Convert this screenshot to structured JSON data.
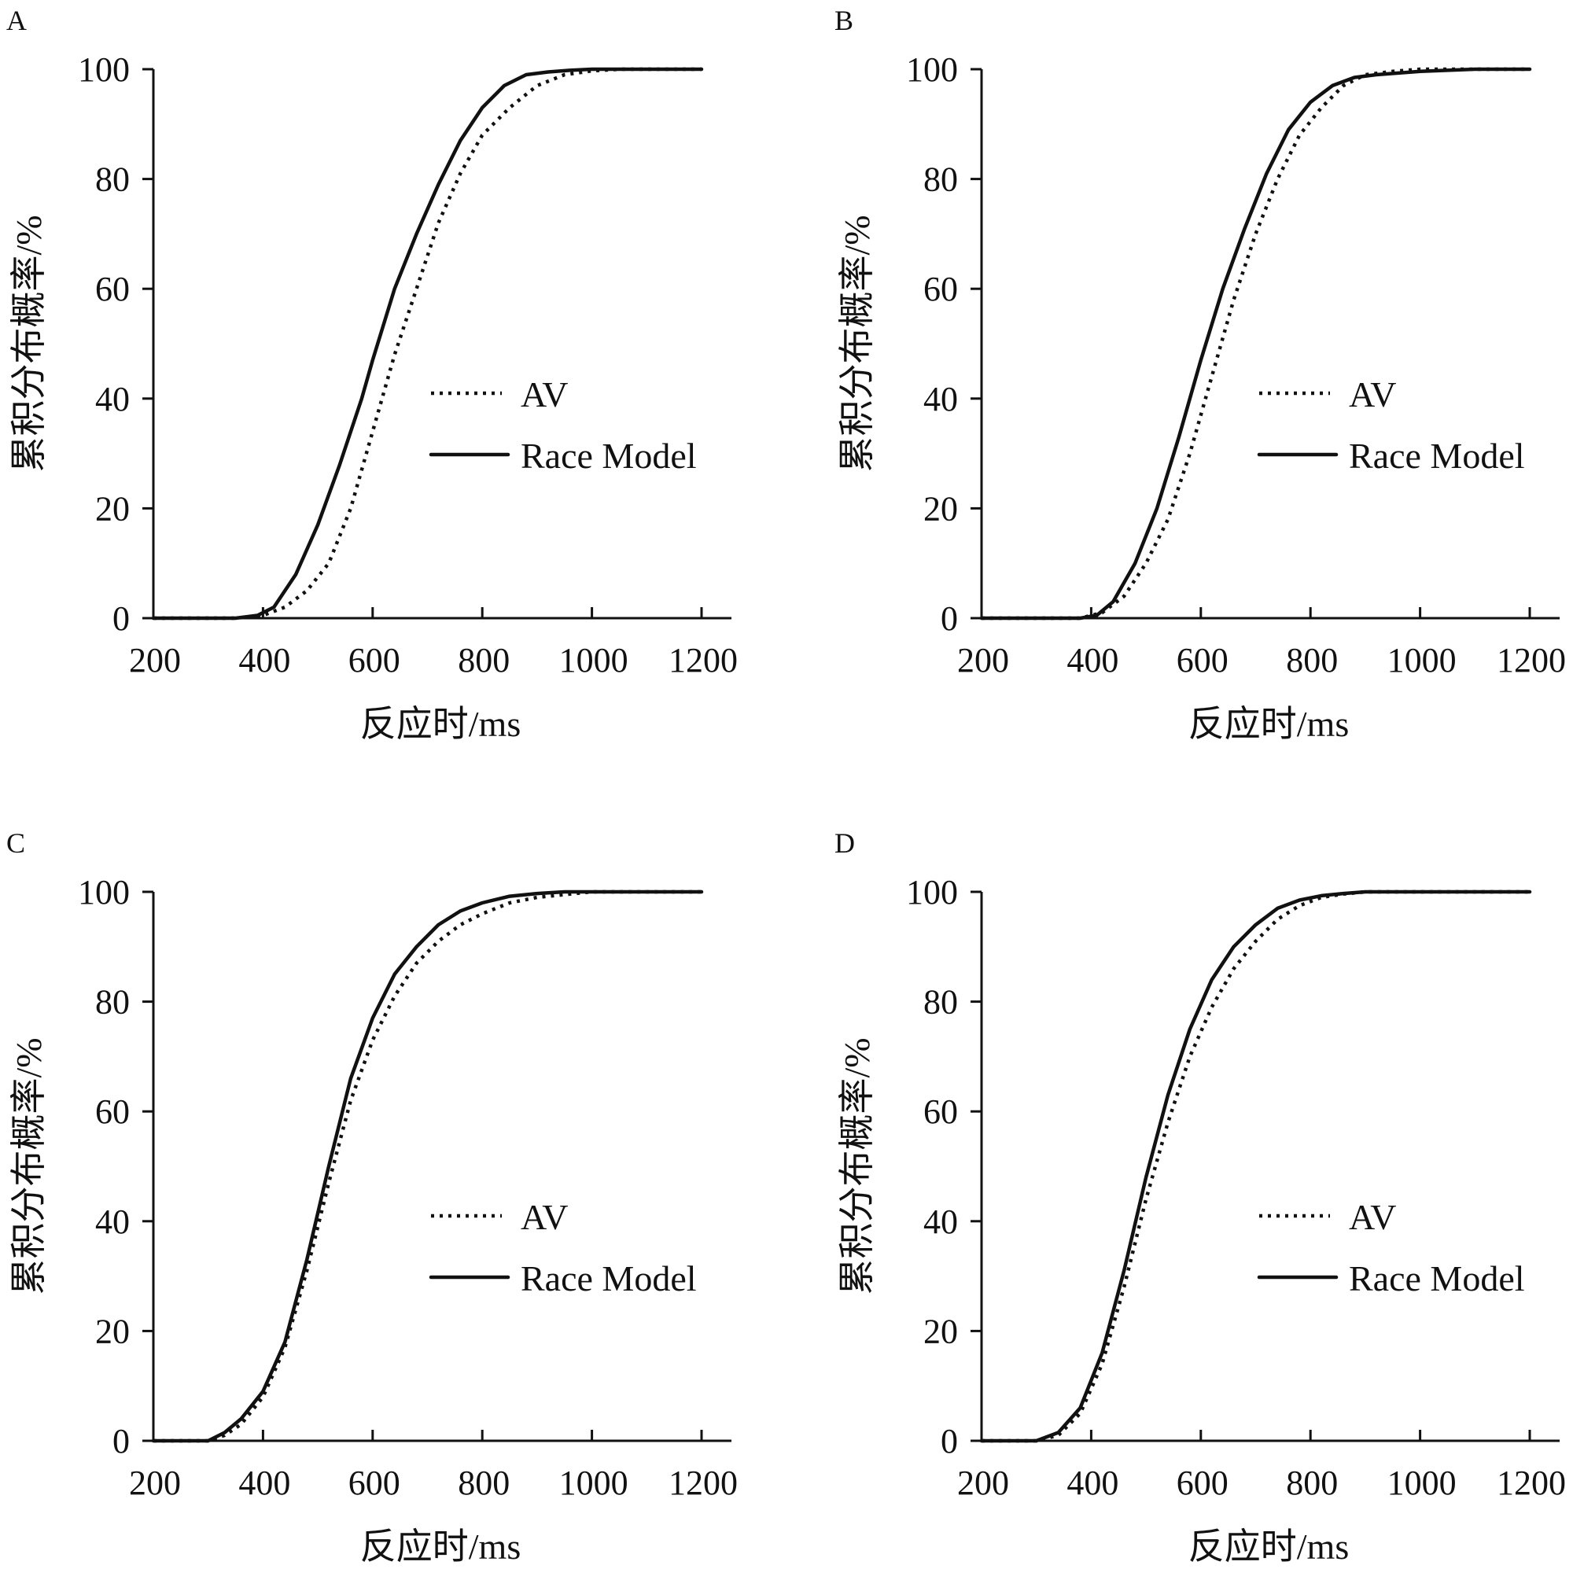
{
  "figure": {
    "y_axis_label": "累积分布概率/%",
    "x_axis_label": "反应时/ms",
    "legend": {
      "av_label": "AV",
      "race_label": "Race Model"
    },
    "colors": {
      "ink": "#111111",
      "background": "#ffffff"
    }
  },
  "chart_data": [
    {
      "panel": "A",
      "type": "line",
      "xlabel": "反应时/ms",
      "ylabel": "累积分布概率/%",
      "xlim": [
        200,
        1200
      ],
      "ylim": [
        0,
        100
      ],
      "xticks": [
        200,
        400,
        600,
        800,
        1000,
        1200
      ],
      "yticks": [
        0,
        20,
        40,
        60,
        80,
        100
      ],
      "legend_position": "center-right",
      "series": [
        {
          "name": "AV",
          "style": "dotted",
          "x": [
            200,
            350,
            400,
            440,
            480,
            520,
            560,
            600,
            640,
            680,
            720,
            760,
            800,
            850,
            900,
            950,
            1000,
            1050,
            1200
          ],
          "y": [
            0,
            0,
            0.5,
            2,
            5,
            10,
            20,
            34,
            48,
            60,
            72,
            81,
            88,
            93,
            97,
            99,
            99.7,
            100,
            100
          ]
        },
        {
          "name": "Race Model",
          "style": "solid",
          "x": [
            200,
            350,
            390,
            420,
            460,
            500,
            540,
            580,
            600,
            640,
            680,
            720,
            760,
            800,
            840,
            880,
            920,
            960,
            1000,
            1050,
            1200
          ],
          "y": [
            0,
            0,
            0.5,
            2,
            8,
            17,
            28,
            40,
            47,
            60,
            70,
            79,
            87,
            93,
            97,
            99,
            99.5,
            99.8,
            100,
            100,
            100
          ]
        }
      ]
    },
    {
      "panel": "B",
      "type": "line",
      "xlabel": "反应时/ms",
      "ylabel": "累积分布概率/%",
      "xlim": [
        200,
        1200
      ],
      "ylim": [
        0,
        100
      ],
      "xticks": [
        200,
        400,
        600,
        800,
        1000,
        1200
      ],
      "yticks": [
        0,
        20,
        40,
        60,
        80,
        100
      ],
      "legend_position": "center-right",
      "series": [
        {
          "name": "AV",
          "style": "dotted",
          "x": [
            200,
            380,
            420,
            460,
            500,
            540,
            580,
            620,
            660,
            700,
            740,
            780,
            820,
            860,
            900,
            950,
            1000,
            1200
          ],
          "y": [
            0,
            0,
            1,
            4,
            10,
            18,
            30,
            44,
            58,
            70,
            80,
            88,
            93,
            97,
            99,
            99.6,
            100,
            100
          ]
        },
        {
          "name": "Race Model",
          "style": "solid",
          "x": [
            200,
            380,
            410,
            440,
            480,
            520,
            560,
            600,
            640,
            680,
            720,
            760,
            800,
            840,
            880,
            920,
            960,
            1000,
            1100,
            1200
          ],
          "y": [
            0,
            0,
            0.5,
            3,
            10,
            20,
            33,
            47,
            60,
            71,
            81,
            89,
            94,
            97,
            98.5,
            99,
            99.3,
            99.6,
            100,
            100
          ]
        }
      ]
    },
    {
      "panel": "C",
      "type": "line",
      "xlabel": "反应时/ms",
      "ylabel": "累积分布概率/%",
      "xlim": [
        200,
        1200
      ],
      "ylim": [
        0,
        100
      ],
      "xticks": [
        200,
        400,
        600,
        800,
        1000,
        1200
      ],
      "yticks": [
        0,
        20,
        40,
        60,
        80,
        100
      ],
      "legend_position": "center-right",
      "series": [
        {
          "name": "AV",
          "style": "dotted",
          "x": [
            200,
            300,
            330,
            360,
            400,
            440,
            480,
            520,
            560,
            600,
            640,
            680,
            720,
            760,
            800,
            850,
            900,
            950,
            1000,
            1200
          ],
          "y": [
            0,
            0,
            1,
            3,
            8,
            17,
            31,
            47,
            62,
            73,
            81,
            87,
            91,
            94,
            96,
            98,
            99,
            99.5,
            100,
            100
          ]
        },
        {
          "name": "Race Model",
          "style": "solid",
          "x": [
            200,
            300,
            330,
            360,
            400,
            440,
            480,
            520,
            560,
            600,
            640,
            680,
            720,
            760,
            800,
            850,
            900,
            950,
            1200
          ],
          "y": [
            0,
            0,
            1.5,
            4,
            9,
            18,
            33,
            50,
            66,
            77,
            85,
            90,
            94,
            96.5,
            98,
            99.2,
            99.7,
            100,
            100
          ]
        }
      ]
    },
    {
      "panel": "D",
      "type": "line",
      "xlabel": "反应时/ms",
      "ylabel": "累积分布概率/%",
      "xlim": [
        200,
        1200
      ],
      "ylim": [
        0,
        100
      ],
      "xticks": [
        200,
        400,
        600,
        800,
        1000,
        1200
      ],
      "yticks": [
        0,
        20,
        40,
        60,
        80,
        100
      ],
      "legend_position": "center-right",
      "series": [
        {
          "name": "AV",
          "style": "dotted",
          "x": [
            200,
            300,
            340,
            380,
            420,
            460,
            500,
            540,
            580,
            620,
            660,
            700,
            740,
            780,
            820,
            860,
            900,
            1200
          ],
          "y": [
            0,
            0,
            1,
            5,
            14,
            28,
            44,
            58,
            70,
            79,
            86,
            91,
            95,
            97.5,
            99,
            99.6,
            100,
            100
          ]
        },
        {
          "name": "Race Model",
          "style": "solid",
          "x": [
            200,
            300,
            340,
            380,
            420,
            460,
            500,
            540,
            580,
            620,
            660,
            700,
            740,
            780,
            820,
            860,
            900,
            1200
          ],
          "y": [
            0,
            0,
            1.5,
            6,
            16,
            31,
            48,
            63,
            75,
            84,
            90,
            94,
            97,
            98.5,
            99.3,
            99.7,
            100,
            100
          ]
        }
      ]
    }
  ]
}
